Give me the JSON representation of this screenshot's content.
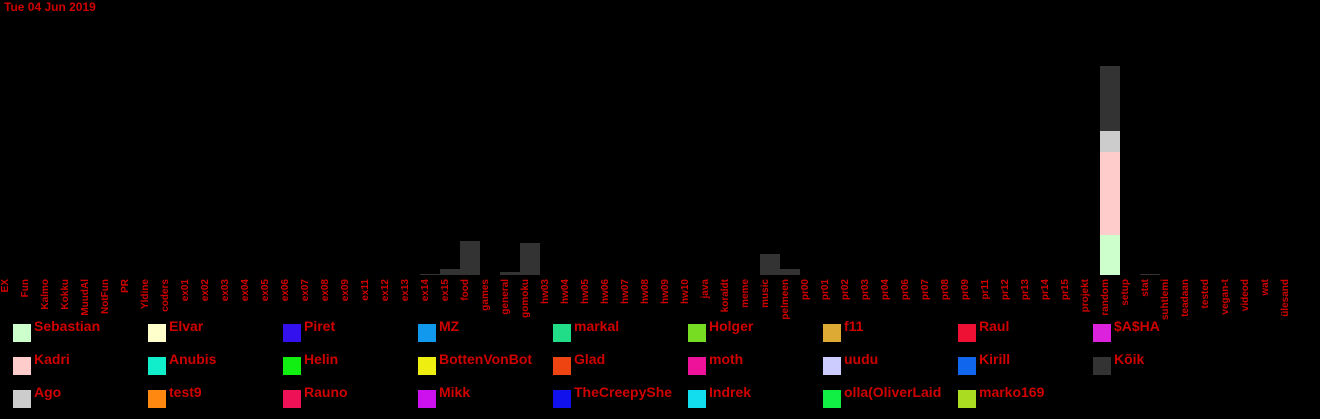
{
  "date_label": "Tue 04 Jun 2019",
  "chart_data": {
    "type": "bar",
    "stacked": true,
    "grid": false,
    "legend_placement": "bottom",
    "categories": [
      "EX",
      "Fun",
      "Kalmo",
      "Kokku",
      "MuudAl",
      "NotFun",
      "PR",
      "Yldine",
      "coders",
      "ex01",
      "ex02",
      "ex03",
      "ex04",
      "ex05",
      "ex06",
      "ex07",
      "ex08",
      "ex09",
      "ex11",
      "ex12",
      "ex13",
      "ex14",
      "ex15",
      "food",
      "games",
      "general",
      "gomoku",
      "hw03",
      "hw04",
      "hw05",
      "hw06",
      "hw07",
      "hw08",
      "hw09",
      "hw10",
      "java",
      "koraldt",
      "meme",
      "music",
      "pelmeen",
      "pr00",
      "pr01",
      "pr02",
      "pr03",
      "pr04",
      "pr06",
      "pr07",
      "pr08",
      "pr09",
      "pr11",
      "pr12",
      "pr13",
      "pr14",
      "pr15",
      "projekt",
      "random",
      "setup",
      "stat",
      "suhtlemi",
      "teadaan",
      "tested",
      "vegan-t",
      "videod",
      "wat",
      "ülesand"
    ],
    "series": [
      {
        "name": "Sebastian",
        "color": "#ccffcc",
        "values": {
          "random": 40
        }
      },
      {
        "name": "Kadri",
        "color": "#ffcccc",
        "values": {
          "random": 83
        }
      },
      {
        "name": "Ago",
        "color": "#cccccc",
        "values": {
          "random": 21
        }
      },
      {
        "name": "Kõik",
        "color": "#333333",
        "values": {
          "ex14": 1,
          "ex15": 6,
          "food": 34,
          "general": 3,
          "gomoku": 32,
          "music": 21,
          "pelmeen": 6,
          "random": 65,
          "stat": 1
        }
      }
    ]
  },
  "legend": [
    {
      "name": "Sebastian",
      "color": "#ccffcc"
    },
    {
      "name": "Elvar",
      "color": "#ffffcc"
    },
    {
      "name": "Piret",
      "color": "#3311ee"
    },
    {
      "name": "MZ",
      "color": "#1199ee"
    },
    {
      "name": "markal",
      "color": "#22dd88"
    },
    {
      "name": "Holger",
      "color": "#77dd22"
    },
    {
      "name": "f11",
      "color": "#ddaa33"
    },
    {
      "name": "Raul",
      "color": "#ee1133"
    },
    {
      "name": "$A$HA",
      "color": "#dd22dd"
    },
    {
      "name": "Kadri",
      "color": "#ffcccc"
    },
    {
      "name": "Anubis",
      "color": "#11eecc"
    },
    {
      "name": "Helin",
      "color": "#11ee11"
    },
    {
      "name": "BottenVonBot",
      "color": "#eeee11"
    },
    {
      "name": "Glad",
      "color": "#ee4411"
    },
    {
      "name": "moth",
      "color": "#ee1199"
    },
    {
      "name": "uudu",
      "color": "#ccccff"
    },
    {
      "name": "Kirill",
      "color": "#1166ee"
    },
    {
      "name": "Kõik",
      "color": "#333333"
    },
    {
      "name": "Ago",
      "color": "#cccccc"
    },
    {
      "name": "test9",
      "color": "#ff8811"
    },
    {
      "name": "Rauno",
      "color": "#ee1155"
    },
    {
      "name": "Mikk",
      "color": "#cc11ee"
    },
    {
      "name": "TheCreepyShe",
      "color": "#1111ee"
    },
    {
      "name": "Indrek",
      "color": "#11ddee"
    },
    {
      "name": "olla(OliverLaid",
      "color": "#11ee44"
    },
    {
      "name": "marko169",
      "color": "#aadd22"
    }
  ]
}
